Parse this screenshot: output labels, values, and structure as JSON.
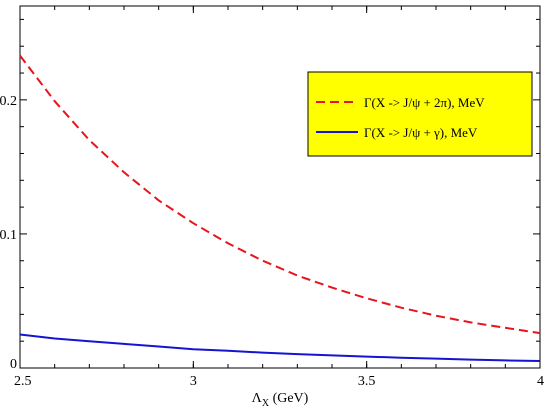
{
  "chart_data": {
    "type": "line",
    "title": "",
    "xlabel_main": "Λ",
    "xlabel_sub": "X",
    "xlabel_unit": " (GeV)",
    "ylabel": "",
    "xlim": [
      2.5,
      4.0
    ],
    "ylim": [
      0,
      0.27
    ],
    "x_ticks": [
      2.5,
      3,
      3.5,
      4
    ],
    "x_tick_labels": [
      "2.5",
      "3",
      "3.5",
      "4"
    ],
    "y_ticks": [
      0,
      0.1,
      0.2
    ],
    "y_tick_labels": [
      "0",
      "0.1",
      "0.2"
    ],
    "grid": false,
    "legend": {
      "position": "top-right",
      "background": "#ffff00"
    },
    "series": [
      {
        "name": "Γ(X -> J/ψ + 2π),  MeV",
        "color": "#e8141b",
        "style": "dashed",
        "x": [
          2.5,
          2.6,
          2.7,
          2.8,
          2.9,
          3.0,
          3.1,
          3.2,
          3.3,
          3.4,
          3.5,
          3.6,
          3.7,
          3.8,
          3.9,
          4.0
        ],
        "y": [
          0.233,
          0.199,
          0.17,
          0.146,
          0.125,
          0.108,
          0.093,
          0.08,
          0.069,
          0.06,
          0.052,
          0.045,
          0.039,
          0.034,
          0.03,
          0.026
        ]
      },
      {
        "name": "Γ(X -> J/ψ + γ),  MeV",
        "color": "#1414d2",
        "style": "solid",
        "x": [
          2.5,
          2.6,
          2.7,
          2.8,
          2.9,
          3.0,
          3.1,
          3.2,
          3.3,
          3.4,
          3.5,
          3.6,
          3.7,
          3.8,
          3.9,
          4.0
        ],
        "y": [
          0.025,
          0.022,
          0.02,
          0.018,
          0.016,
          0.014,
          0.0128,
          0.0115,
          0.0104,
          0.0094,
          0.0085,
          0.0077,
          0.007,
          0.0063,
          0.0057,
          0.0052
        ]
      }
    ]
  }
}
